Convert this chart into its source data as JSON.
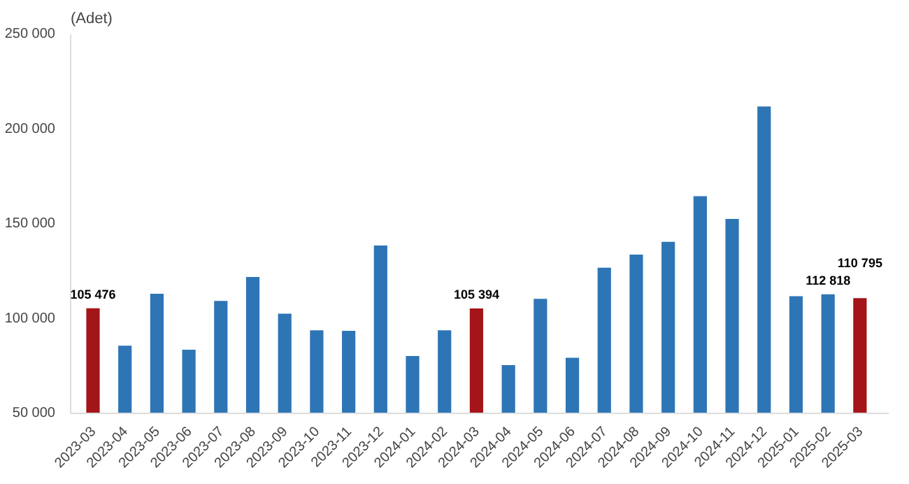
{
  "chart_data": {
    "type": "bar",
    "ylabel": "(Adet)",
    "categories": [
      "2023-03",
      "2023-04",
      "2023-05",
      "2023-06",
      "2023-07",
      "2023-08",
      "2023-09",
      "2023-10",
      "2023-11",
      "2023-12",
      "2024-01",
      "2024-02",
      "2024-03",
      "2024-04",
      "2024-05",
      "2024-06",
      "2024-07",
      "2024-08",
      "2024-09",
      "2024-10",
      "2024-11",
      "2024-12",
      "2025-01",
      "2025-02",
      "2025-03"
    ],
    "values": [
      105476,
      85700,
      113100,
      83600,
      109300,
      122000,
      102600,
      93800,
      93500,
      138600,
      80300,
      93800,
      105394,
      75500,
      110400,
      79300,
      126800,
      133800,
      140500,
      164600,
      152600,
      211900,
      111800,
      112818,
      110795
    ],
    "colors": [
      "#a31519",
      "#2e75b6",
      "#2e75b6",
      "#2e75b6",
      "#2e75b6",
      "#2e75b6",
      "#2e75b6",
      "#2e75b6",
      "#2e75b6",
      "#2e75b6",
      "#2e75b6",
      "#2e75b6",
      "#a31519",
      "#2e75b6",
      "#2e75b6",
      "#2e75b6",
      "#2e75b6",
      "#2e75b6",
      "#2e75b6",
      "#2e75b6",
      "#2e75b6",
      "#2e75b6",
      "#2e75b6",
      "#2e75b6",
      "#a31519"
    ],
    "value_labels": [
      "105 476",
      null,
      null,
      null,
      null,
      null,
      null,
      null,
      null,
      null,
      null,
      null,
      "105 394",
      null,
      null,
      null,
      null,
      null,
      null,
      null,
      null,
      null,
      null,
      "112 818",
      "110 795"
    ],
    "ylim": [
      50000,
      250000
    ],
    "yticks": [
      {
        "value": 50000,
        "label": "50 000"
      },
      {
        "value": 100000,
        "label": "100 000"
      },
      {
        "value": 150000,
        "label": "150 000"
      },
      {
        "value": 200000,
        "label": "200 000"
      },
      {
        "value": 250000,
        "label": "250 000"
      }
    ],
    "grid": false
  }
}
